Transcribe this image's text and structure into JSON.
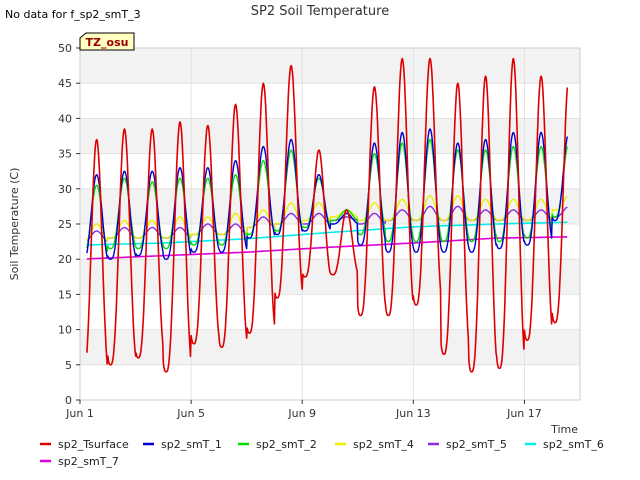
{
  "chart_data": {
    "type": "line",
    "title": "SP2 Soil Temperature",
    "nodata_note": "No data for f_sp2_smT_3",
    "site_badge": "TZ_osu",
    "xlabel": "Time",
    "ylabel": "Soil Temperature (C)",
    "xlim": [
      0,
      18
    ],
    "ylim": [
      0,
      50
    ],
    "x_ticks": [
      {
        "v": 0,
        "label": "Jun 1"
      },
      {
        "v": 4,
        "label": "Jun 5"
      },
      {
        "v": 8,
        "label": "Jun 9"
      },
      {
        "v": 12,
        "label": "Jun 13"
      },
      {
        "v": 16,
        "label": "Jun 17"
      }
    ],
    "y_ticks": [
      0,
      5,
      10,
      15,
      20,
      25,
      30,
      35,
      40,
      45,
      50
    ],
    "grid": true,
    "legend_position": "bottom",
    "series": [
      {
        "name": "sp2_Tsurface",
        "color": "#dd0000",
        "width": 1.6,
        "mins": [
          3.0,
          5.0,
          6.0,
          4.0,
          8.0,
          7.5,
          9.5,
          14.5,
          17.5,
          17.8,
          12.0,
          12.0,
          13.5,
          6.5,
          4.0,
          4.5,
          8.5,
          11.0
        ],
        "maxs": [
          37.0,
          38.5,
          38.5,
          39.5,
          39.0,
          42.0,
          45.0,
          47.5,
          35.5,
          27.0,
          44.5,
          48.5,
          48.5,
          45.0,
          46.0,
          48.5,
          46.0,
          46.0
        ]
      },
      {
        "name": "sp2_smT_1",
        "color": "#0000cc",
        "width": 1.4,
        "mins": [
          19.5,
          20.0,
          20.5,
          20.0,
          21.0,
          21.0,
          23.0,
          23.5,
          24.0,
          25.0,
          22.0,
          21.0,
          21.0,
          21.0,
          21.0,
          21.5,
          22.0,
          25.5
        ],
        "maxs": [
          32.0,
          32.5,
          32.5,
          33.0,
          33.0,
          34.0,
          36.0,
          37.0,
          32.0,
          26.5,
          36.5,
          38.0,
          38.5,
          36.5,
          37.0,
          38.0,
          38.0,
          38.0
        ]
      },
      {
        "name": "sp2_smT_2",
        "color": "#00dd00",
        "width": 1.4,
        "mins": [
          20.5,
          21.5,
          21.5,
          21.5,
          22.0,
          22.0,
          23.5,
          24.0,
          24.5,
          25.5,
          23.5,
          22.5,
          22.5,
          22.5,
          22.5,
          22.5,
          23.0,
          26.0
        ],
        "maxs": [
          30.5,
          31.5,
          31.0,
          31.5,
          31.5,
          32.0,
          34.0,
          35.5,
          31.5,
          27.0,
          35.0,
          36.5,
          37.0,
          35.5,
          35.5,
          36.0,
          36.0,
          36.5
        ]
      },
      {
        "name": "sp2_smT_4",
        "color": "#eeee00",
        "width": 1.4,
        "mins": [
          22.5,
          23.0,
          23.0,
          23.0,
          23.5,
          23.5,
          24.5,
          25.0,
          25.5,
          26.0,
          25.5,
          25.5,
          25.5,
          25.5,
          25.5,
          25.5,
          25.5,
          27.0
        ],
        "maxs": [
          25.0,
          25.5,
          25.5,
          26.0,
          26.0,
          26.5,
          27.0,
          28.0,
          28.0,
          27.0,
          28.0,
          28.5,
          29.0,
          29.0,
          28.5,
          28.5,
          28.5,
          29.0
        ]
      },
      {
        "name": "sp2_smT_5",
        "color": "#8a2be2",
        "width": 1.4,
        "mins": [
          22.5,
          23.0,
          23.0,
          23.0,
          23.5,
          23.5,
          24.5,
          25.0,
          25.0,
          25.5,
          25.0,
          25.5,
          25.5,
          25.5,
          25.5,
          25.5,
          25.5,
          26.0
        ],
        "maxs": [
          24.0,
          24.5,
          24.5,
          24.5,
          25.0,
          25.0,
          26.0,
          26.5,
          26.5,
          26.0,
          26.5,
          27.0,
          27.5,
          27.5,
          27.0,
          27.0,
          27.0,
          27.5
        ]
      },
      {
        "name": "sp2_smT_6",
        "color": "#00eeee",
        "width": 1.6,
        "trend": [
          [
            0,
            22.0
          ],
          [
            3,
            22.3
          ],
          [
            6,
            22.9
          ],
          [
            9,
            23.8
          ],
          [
            12,
            24.6
          ],
          [
            15,
            25.0
          ],
          [
            18,
            25.3
          ]
        ]
      },
      {
        "name": "sp2_smT_7",
        "color": "#dd00dd",
        "width": 1.6,
        "trend": [
          [
            0,
            20.0
          ],
          [
            3,
            20.5
          ],
          [
            6,
            21.0
          ],
          [
            9,
            21.7
          ],
          [
            12,
            22.3
          ],
          [
            15,
            23.0
          ],
          [
            18,
            23.2
          ]
        ]
      }
    ]
  }
}
